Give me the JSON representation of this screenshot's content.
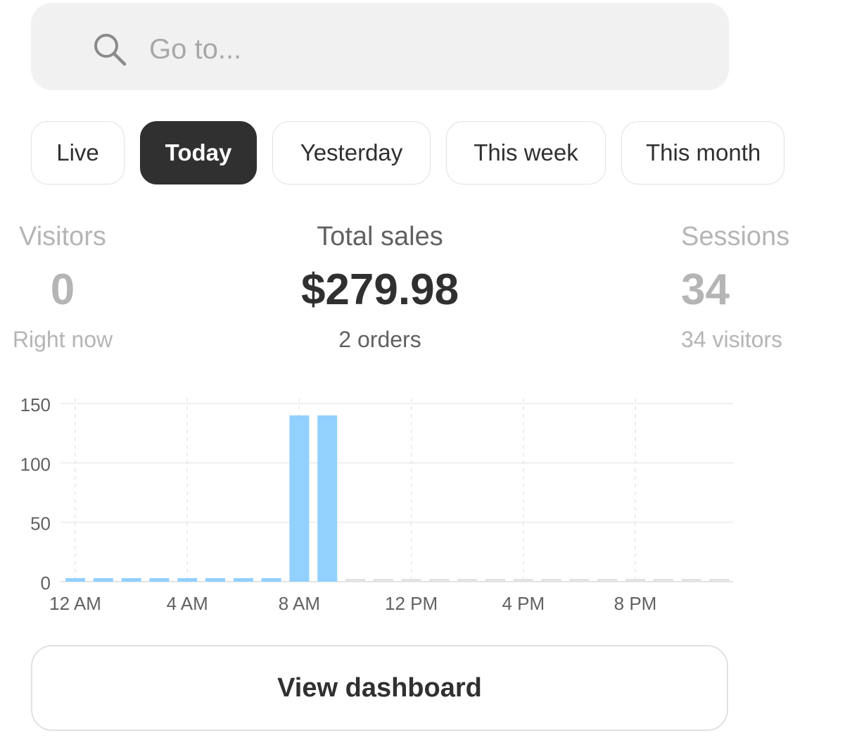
{
  "search": {
    "placeholder": "Go to..."
  },
  "tabs": [
    {
      "label": "Live",
      "active": false
    },
    {
      "label": "Today",
      "active": true
    },
    {
      "label": "Yesterday",
      "active": false
    },
    {
      "label": "This week",
      "active": false
    },
    {
      "label": "This month",
      "active": false
    }
  ],
  "metrics": {
    "visitors": {
      "label": "Visitors",
      "value": "0",
      "sub": "Right now"
    },
    "total_sales": {
      "label": "Total sales",
      "value": "$279.98",
      "sub": "2 orders"
    },
    "sessions": {
      "label": "Sessions",
      "value": "34",
      "sub": "34 visitors"
    }
  },
  "chart_data": {
    "type": "bar",
    "x_tick_labels": [
      "12 AM",
      "4 AM",
      "8 AM",
      "12 PM",
      "4 PM",
      "8 PM"
    ],
    "y_ticks": [
      0,
      50,
      100,
      150
    ],
    "ylim": [
      0,
      150
    ],
    "grid": true,
    "categories": [
      "0",
      "1",
      "2",
      "3",
      "4",
      "5",
      "6",
      "7",
      "8",
      "9",
      "10",
      "11",
      "12",
      "13",
      "14",
      "15",
      "16",
      "17",
      "18",
      "19",
      "20",
      "21",
      "22",
      "23"
    ],
    "values": [
      0,
      0,
      0,
      0,
      0,
      0,
      0,
      0,
      140,
      140,
      null,
      null,
      null,
      null,
      null,
      null,
      null,
      null,
      null,
      null,
      null,
      null,
      null,
      null
    ],
    "colors": {
      "bar": "#91d0ff",
      "future": "#e3e3e3",
      "grid": "#ebebeb"
    }
  },
  "button": {
    "label": "View dashboard"
  }
}
